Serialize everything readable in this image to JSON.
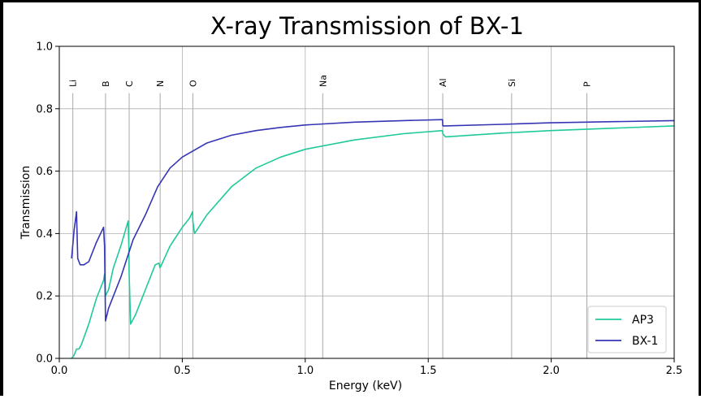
{
  "chart_data": {
    "type": "line",
    "title": "X-ray Transmission of BX-1",
    "xlabel": "Energy (keV)",
    "ylabel": "Transmission",
    "xlim": [
      0.0,
      2.5
    ],
    "ylim": [
      0.0,
      1.0
    ],
    "xticks": [
      "0.0",
      "0.5",
      "1.0",
      "1.5",
      "2.0",
      "2.5"
    ],
    "yticks": [
      "0.0",
      "0.2",
      "0.4",
      "0.6",
      "0.8",
      "1.0"
    ],
    "grid": true,
    "legend_position": "lower-right",
    "edge_lines": [
      {
        "label": "Li",
        "x": 0.055
      },
      {
        "label": "B",
        "x": 0.188
      },
      {
        "label": "C",
        "x": 0.284
      },
      {
        "label": "N",
        "x": 0.41
      },
      {
        "label": "O",
        "x": 0.543
      },
      {
        "label": "Na",
        "x": 1.071
      },
      {
        "label": "Al",
        "x": 1.559
      },
      {
        "label": "Si",
        "x": 1.839
      },
      {
        "label": "P",
        "x": 2.145
      }
    ],
    "series": [
      {
        "name": "AP3",
        "color": "#1fc99a",
        "x": [
          0.05,
          0.06,
          0.07,
          0.08,
          0.09,
          0.12,
          0.15,
          0.18,
          0.184,
          0.188,
          0.2,
          0.22,
          0.25,
          0.28,
          0.283,
          0.284,
          0.29,
          0.31,
          0.35,
          0.39,
          0.405,
          0.41,
          0.45,
          0.5,
          0.53,
          0.542,
          0.543,
          0.55,
          0.6,
          0.7,
          0.8,
          0.9,
          1.0,
          1.2,
          1.4,
          1.558,
          1.559,
          1.57,
          1.8,
          2.0,
          2.5
        ],
        "y": [
          0.0,
          0.01,
          0.03,
          0.03,
          0.045,
          0.11,
          0.19,
          0.25,
          0.27,
          0.2,
          0.22,
          0.29,
          0.36,
          0.44,
          0.35,
          0.27,
          0.11,
          0.14,
          0.22,
          0.3,
          0.305,
          0.29,
          0.36,
          0.42,
          0.45,
          0.47,
          0.44,
          0.4,
          0.46,
          0.55,
          0.61,
          0.645,
          0.67,
          0.7,
          0.72,
          0.73,
          0.72,
          0.71,
          0.722,
          0.73,
          0.745
        ]
      },
      {
        "name": "BX-1",
        "color": "#3535b5",
        "x": [
          0.05,
          0.06,
          0.07,
          0.075,
          0.085,
          0.1,
          0.12,
          0.15,
          0.18,
          0.184,
          0.188,
          0.2,
          0.25,
          0.3,
          0.35,
          0.4,
          0.45,
          0.5,
          0.6,
          0.7,
          0.8,
          0.9,
          1.0,
          1.2,
          1.4,
          1.558,
          1.559,
          1.57,
          1.8,
          2.0,
          2.5
        ],
        "y": [
          0.32,
          0.41,
          0.47,
          0.32,
          0.3,
          0.3,
          0.31,
          0.37,
          0.42,
          0.36,
          0.12,
          0.16,
          0.26,
          0.38,
          0.46,
          0.55,
          0.61,
          0.645,
          0.69,
          0.715,
          0.73,
          0.74,
          0.748,
          0.757,
          0.762,
          0.765,
          0.745,
          0.745,
          0.75,
          0.755,
          0.762
        ]
      }
    ]
  }
}
